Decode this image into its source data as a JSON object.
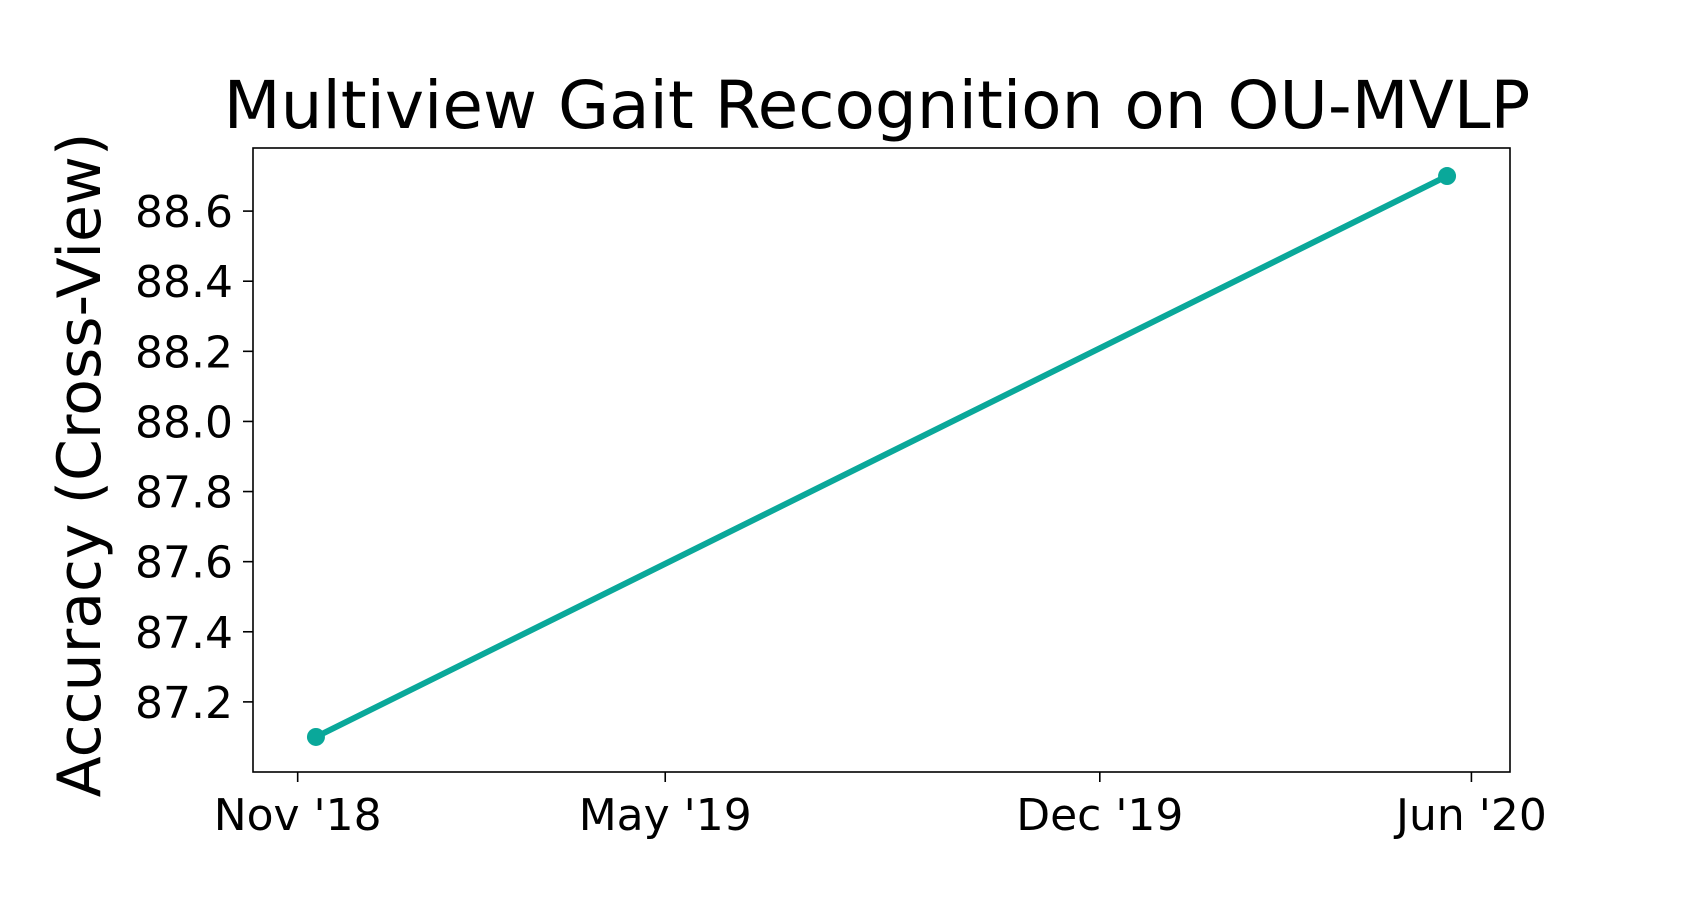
{
  "chart_data": {
    "type": "line",
    "title": "Multiview Gait Recognition on OU-MVLP",
    "xlabel": "",
    "ylabel": "Accuracy (Cross-View)",
    "x_ticks": [
      {
        "date": "2018-11-01",
        "label": "Nov '18"
      },
      {
        "date": "2019-05-01",
        "label": "May '19"
      },
      {
        "date": "2019-12-01",
        "label": "Dec '19"
      },
      {
        "date": "2020-06-01",
        "label": "Jun '20"
      }
    ],
    "y_ticks": [
      87.2,
      87.4,
      87.6,
      87.8,
      88.0,
      88.2,
      88.4,
      88.6
    ],
    "xlim": [
      "2018-10-10",
      "2020-06-20"
    ],
    "ylim": [
      87.0,
      88.78
    ],
    "grid": false,
    "series": [
      {
        "color": "#0aa89a",
        "x": [
          "2018-11-10",
          "2020-05-20"
        ],
        "y": [
          87.1,
          88.7
        ]
      }
    ]
  }
}
